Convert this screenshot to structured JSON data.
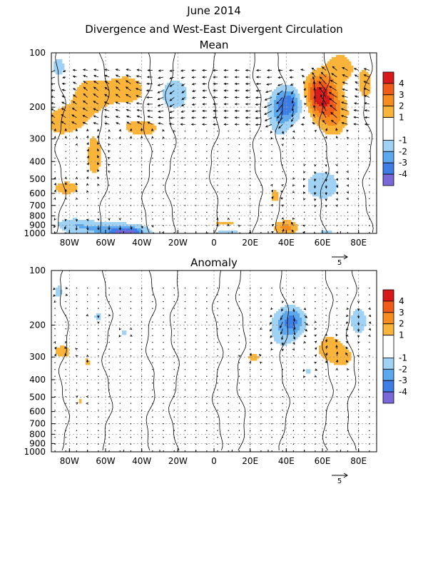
{
  "figure": {
    "title": "June 2014",
    "subtitle": "Divergence and West-East Divergent Circulation"
  },
  "chart_data": [
    {
      "type": "heatmap",
      "title": "Mean",
      "x_ticks": [
        "80W",
        "60W",
        "40W",
        "20W",
        "0",
        "20E",
        "40E",
        "60E",
        "80E"
      ],
      "x_tick_values": [
        -80,
        -60,
        -40,
        -20,
        0,
        20,
        40,
        60,
        80
      ],
      "xlim": [
        -90,
        90
      ],
      "y_ticks": [
        "100",
        "200",
        "300",
        "400",
        "500",
        "600",
        "700",
        "800",
        "900",
        "1000"
      ],
      "y_tick_values": [
        100,
        200,
        300,
        400,
        500,
        600,
        700,
        800,
        900,
        1000
      ],
      "ylim": [
        1000,
        100
      ],
      "y_scale": "log-pressure",
      "vector_reference": "5",
      "grid": true,
      "colorbar_labels": [
        "4",
        "3",
        "2",
        "1",
        "-1",
        "-2",
        "-3",
        "-4"
      ],
      "colorbar_colors": [
        "#d7191c",
        "#f05c17",
        "#f98c1f",
        "#fbb43a",
        "#ffffff",
        "#9fd2f5",
        "#5ca8ef",
        "#3c7de6",
        "#2348c8",
        "#7b68d8"
      ],
      "blobs": [
        {
          "x": -68,
          "p": 170,
          "rx": 8,
          "rp": 0.18,
          "v": 1.6
        },
        {
          "x": -48,
          "p": 160,
          "rx": 8,
          "rp": 0.15,
          "v": 1.7
        },
        {
          "x": -84,
          "p": 240,
          "rx": 10,
          "rp": 0.18,
          "v": 1.4
        },
        {
          "x": -40,
          "p": 260,
          "rx": 12,
          "rp": 0.12,
          "v": 1.3
        },
        {
          "x": -66,
          "p": 380,
          "rx": 5,
          "rp": 0.25,
          "v": 1.3
        },
        {
          "x": -82,
          "p": 560,
          "rx": 8,
          "rp": 0.1,
          "v": 1.3
        },
        {
          "x": -22,
          "p": 170,
          "rx": 7,
          "rp": 0.18,
          "v": -1.6
        },
        {
          "x": -86,
          "p": 120,
          "rx": 4,
          "rp": 0.12,
          "v": -1.4
        },
        {
          "x": -58,
          "p": 960,
          "rx": 16,
          "rp": 0.08,
          "v": -2.2
        },
        {
          "x": -48,
          "p": 990,
          "rx": 6,
          "rp": 0.04,
          "v": -3.6
        },
        {
          "x": -78,
          "p": 880,
          "rx": 8,
          "rp": 0.06,
          "v": -1.3
        },
        {
          "x": 42,
          "p": 190,
          "rx": 6,
          "rp": 0.15,
          "v": -3.3
        },
        {
          "x": 36,
          "p": 230,
          "rx": 5,
          "rp": 0.22,
          "v": -1.5
        },
        {
          "x": 58,
          "p": 170,
          "rx": 6,
          "rp": 0.18,
          "v": 4.5
        },
        {
          "x": 66,
          "p": 220,
          "rx": 6,
          "rp": 0.2,
          "v": 2.3
        },
        {
          "x": 70,
          "p": 120,
          "rx": 6,
          "rp": 0.15,
          "v": 1.6
        },
        {
          "x": 84,
          "p": 150,
          "rx": 4,
          "rp": 0.2,
          "v": 1.3
        },
        {
          "x": 60,
          "p": 540,
          "rx": 10,
          "rp": 0.2,
          "v": -1.4
        },
        {
          "x": 40,
          "p": 930,
          "rx": 5,
          "rp": 0.07,
          "v": 2.4
        },
        {
          "x": 34,
          "p": 620,
          "rx": 3,
          "rp": 0.1,
          "v": 1.3
        },
        {
          "x": 6,
          "p": 880,
          "rx": 7,
          "rp": 0.04,
          "v": 1.3
        },
        {
          "x": 8,
          "p": 980,
          "rx": 8,
          "rp": 0.04,
          "v": -1.3
        },
        {
          "x": 62,
          "p": 990,
          "rx": 5,
          "rp": 0.04,
          "v": -1.3
        }
      ]
    },
    {
      "type": "heatmap",
      "title": "Anomaly",
      "x_ticks": [
        "80W",
        "60W",
        "40W",
        "20W",
        "0",
        "20E",
        "40E",
        "60E",
        "80E"
      ],
      "x_tick_values": [
        -80,
        -60,
        -40,
        -20,
        0,
        20,
        40,
        60,
        80
      ],
      "xlim": [
        -90,
        90
      ],
      "y_ticks": [
        "100",
        "200",
        "300",
        "400",
        "500",
        "600",
        "700",
        "800",
        "900",
        "1000"
      ],
      "y_tick_values": [
        100,
        200,
        300,
        400,
        500,
        600,
        700,
        800,
        900,
        1000
      ],
      "ylim": [
        1000,
        100
      ],
      "y_scale": "log-pressure",
      "vector_reference": "5",
      "grid": true,
      "colorbar_labels": [
        "4",
        "3",
        "2",
        "1",
        "-1",
        "-2",
        "-3",
        "-4"
      ],
      "colorbar_colors": [
        "#d7191c",
        "#f05c17",
        "#f98c1f",
        "#fbb43a",
        "#ffffff",
        "#9fd2f5",
        "#5ca8ef",
        "#3c7de6",
        "#2348c8",
        "#7b68d8"
      ],
      "blobs": [
        {
          "x": 44,
          "p": 190,
          "rx": 5,
          "rp": 0.12,
          "v": -2.6
        },
        {
          "x": 38,
          "p": 210,
          "rx": 6,
          "rp": 0.2,
          "v": -1.6
        },
        {
          "x": 80,
          "p": 190,
          "rx": 5,
          "rp": 0.18,
          "v": -1.4
        },
        {
          "x": 64,
          "p": 270,
          "rx": 6,
          "rp": 0.15,
          "v": 1.6
        },
        {
          "x": 72,
          "p": 300,
          "rx": 4,
          "rp": 0.1,
          "v": 1.3
        },
        {
          "x": -84,
          "p": 280,
          "rx": 5,
          "rp": 0.08,
          "v": 1.4
        },
        {
          "x": -70,
          "p": 320,
          "rx": 2,
          "rp": 0.05,
          "v": 1.3
        },
        {
          "x": 22,
          "p": 300,
          "rx": 4,
          "rp": 0.06,
          "v": 1.3
        },
        {
          "x": -86,
          "p": 130,
          "rx": 2,
          "rp": 0.1,
          "v": -1.3
        },
        {
          "x": -64,
          "p": 180,
          "rx": 3,
          "rp": 0.06,
          "v": -1.2
        },
        {
          "x": -50,
          "p": 220,
          "rx": 3,
          "rp": 0.04,
          "v": -1.2
        },
        {
          "x": -74,
          "p": 520,
          "rx": 1.5,
          "rp": 0.05,
          "v": 1.2
        },
        {
          "x": 52,
          "p": 360,
          "rx": 3,
          "rp": 0.06,
          "v": -1.2
        }
      ]
    }
  ]
}
